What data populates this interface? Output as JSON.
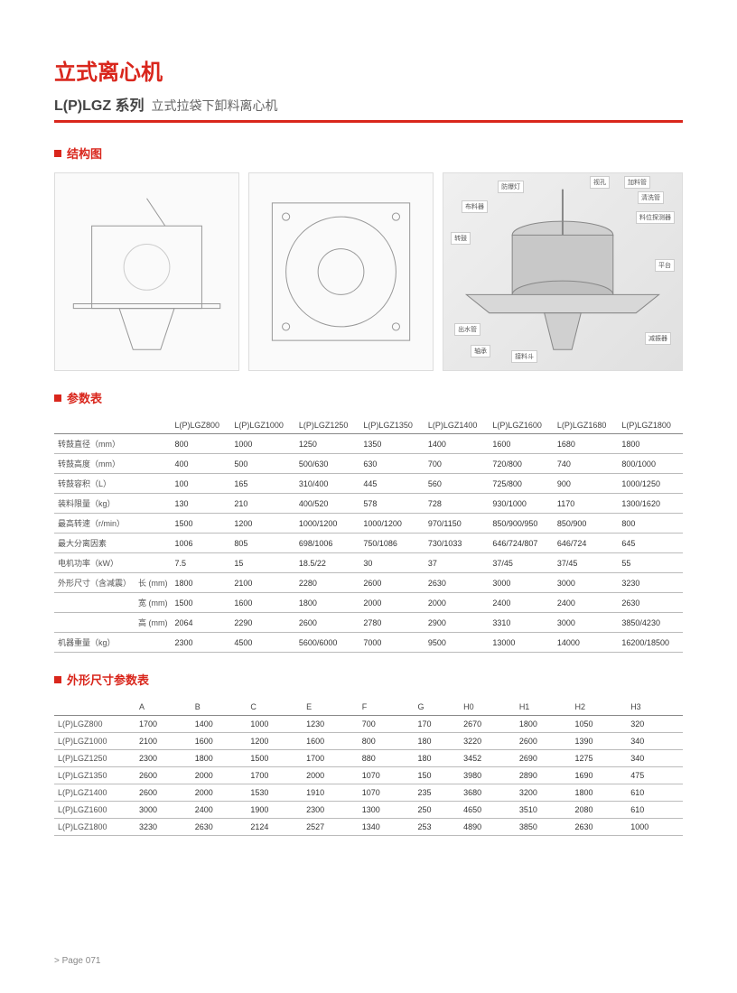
{
  "header": {
    "title": "立式离心机",
    "series": "L(P)LGZ 系列",
    "desc": "立式拉袋下卸料离心机"
  },
  "sections": {
    "structure": "结构图",
    "params": "参数表",
    "dims": "外形尺寸参数表"
  },
  "callouts": [
    "防爆灯",
    "视孔",
    "加料管",
    "布料器",
    "清洗管",
    "料位探测器",
    "转鼓",
    "平台",
    "出水管",
    "接料斗",
    "轴承",
    "减振器"
  ],
  "spec_table": {
    "columns": [
      "",
      "",
      "L(P)LGZ800",
      "L(P)LGZ1000",
      "L(P)LGZ1250",
      "L(P)LGZ1350",
      "L(P)LGZ1400",
      "L(P)LGZ1600",
      "L(P)LGZ1680",
      "L(P)LGZ1800"
    ],
    "rows": [
      [
        "转鼓直径（mm）",
        "",
        "800",
        "1000",
        "1250",
        "1350",
        "1400",
        "1600",
        "1680",
        "1800"
      ],
      [
        "转鼓高度（mm）",
        "",
        "400",
        "500",
        "500/630",
        "630",
        "700",
        "720/800",
        "740",
        "800/1000"
      ],
      [
        "转鼓容积（L）",
        "",
        "100",
        "165",
        "310/400",
        "445",
        "560",
        "725/800",
        "900",
        "1000/1250"
      ],
      [
        "装料限量（kg）",
        "",
        "130",
        "210",
        "400/520",
        "578",
        "728",
        "930/1000",
        "1170",
        "1300/1620"
      ],
      [
        "最高转速（r/min）",
        "",
        "1500",
        "1200",
        "1000/1200",
        "1000/1200",
        "970/1150",
        "850/900/950",
        "850/900",
        "800"
      ],
      [
        "最大分离因素",
        "",
        "1006",
        "805",
        "698/1006",
        "750/1086",
        "730/1033",
        "646/724/807",
        "646/724",
        "645"
      ],
      [
        "电机功率（kW）",
        "",
        "7.5",
        "15",
        "18.5/22",
        "30",
        "37",
        "37/45",
        "37/45",
        "55"
      ],
      [
        "外形尺寸（含减震）",
        "长 (mm)",
        "1800",
        "2100",
        "2280",
        "2600",
        "2630",
        "3000",
        "3000",
        "3230"
      ],
      [
        "",
        "宽 (mm)",
        "1500",
        "1600",
        "1800",
        "2000",
        "2000",
        "2400",
        "2400",
        "2630"
      ],
      [
        "",
        "高 (mm)",
        "2064",
        "2290",
        "2600",
        "2780",
        "2900",
        "3310",
        "3000",
        "3850/4230"
      ],
      [
        "机器重量（kg）",
        "",
        "2300",
        "4500",
        "5600/6000",
        "7000",
        "9500",
        "13000",
        "14000",
        "16200/18500"
      ]
    ]
  },
  "dim_table": {
    "columns": [
      "",
      "A",
      "B",
      "C",
      "E",
      "F",
      "G",
      "H0",
      "H1",
      "H2",
      "H3"
    ],
    "rows": [
      [
        "L(P)LGZ800",
        "1700",
        "1400",
        "1000",
        "1230",
        "700",
        "170",
        "2670",
        "1800",
        "1050",
        "320"
      ],
      [
        "L(P)LGZ1000",
        "2100",
        "1600",
        "1200",
        "1600",
        "800",
        "180",
        "3220",
        "2600",
        "1390",
        "340"
      ],
      [
        "L(P)LGZ1250",
        "2300",
        "1800",
        "1500",
        "1700",
        "880",
        "180",
        "3452",
        "2690",
        "1275",
        "340"
      ],
      [
        "L(P)LGZ1350",
        "2600",
        "2000",
        "1700",
        "2000",
        "1070",
        "150",
        "3980",
        "2890",
        "1690",
        "475"
      ],
      [
        "L(P)LGZ1400",
        "2600",
        "2000",
        "1530",
        "1910",
        "1070",
        "235",
        "3680",
        "3200",
        "1800",
        "610"
      ],
      [
        "L(P)LGZ1600",
        "3000",
        "2400",
        "1900",
        "2300",
        "1300",
        "250",
        "4650",
        "3510",
        "2080",
        "610"
      ],
      [
        "L(P)LGZ1800",
        "3230",
        "2630",
        "2124",
        "2527",
        "1340",
        "253",
        "4890",
        "3850",
        "2630",
        "1000"
      ]
    ]
  },
  "footer": "> Page 071"
}
